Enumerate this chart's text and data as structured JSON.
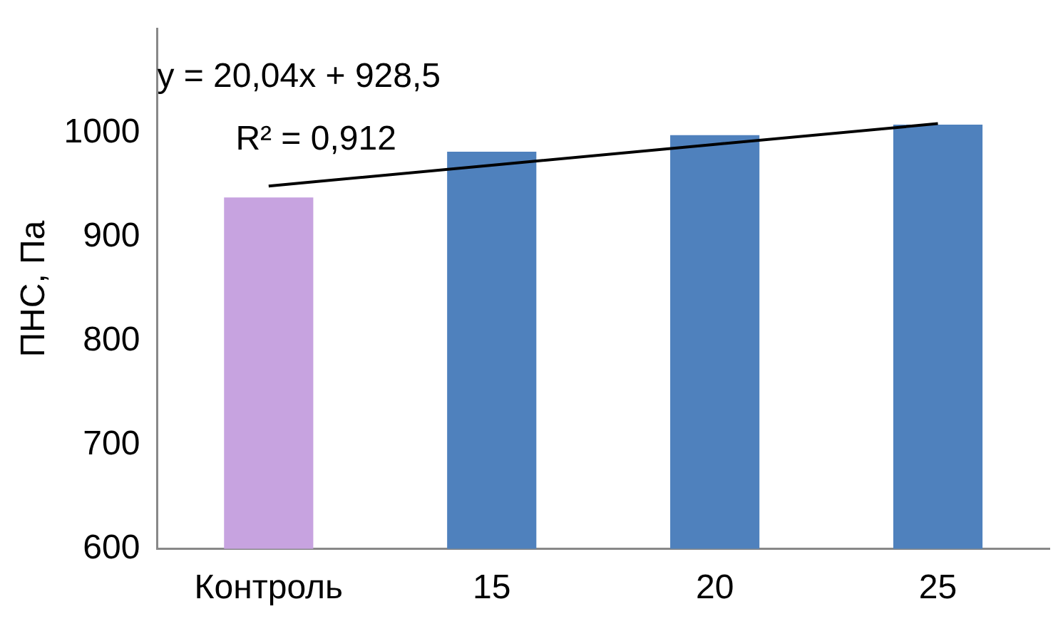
{
  "chart_data": {
    "type": "bar",
    "ylabel": "ПНС, Па",
    "categories": [
      "Контроль",
      "15",
      "20",
      "25"
    ],
    "series": [
      {
        "colors": [
          "#c7a3e0",
          "#4f81bd",
          "#4f81bd",
          "#4f81bd"
        ],
        "values": [
          938,
          982,
          998,
          1008
        ]
      },
      {
        "type": "line",
        "values": [
          949,
          969,
          989,
          1009
        ],
        "color": "#000000"
      }
    ],
    "ylim": [
      600,
      1100
    ],
    "yticks": [
      600,
      700,
      800,
      900,
      1000
    ],
    "grid": false,
    "legend": false,
    "annotations": [
      "y = 20,04x + 928,5",
      "R² = 0,912"
    ]
  }
}
